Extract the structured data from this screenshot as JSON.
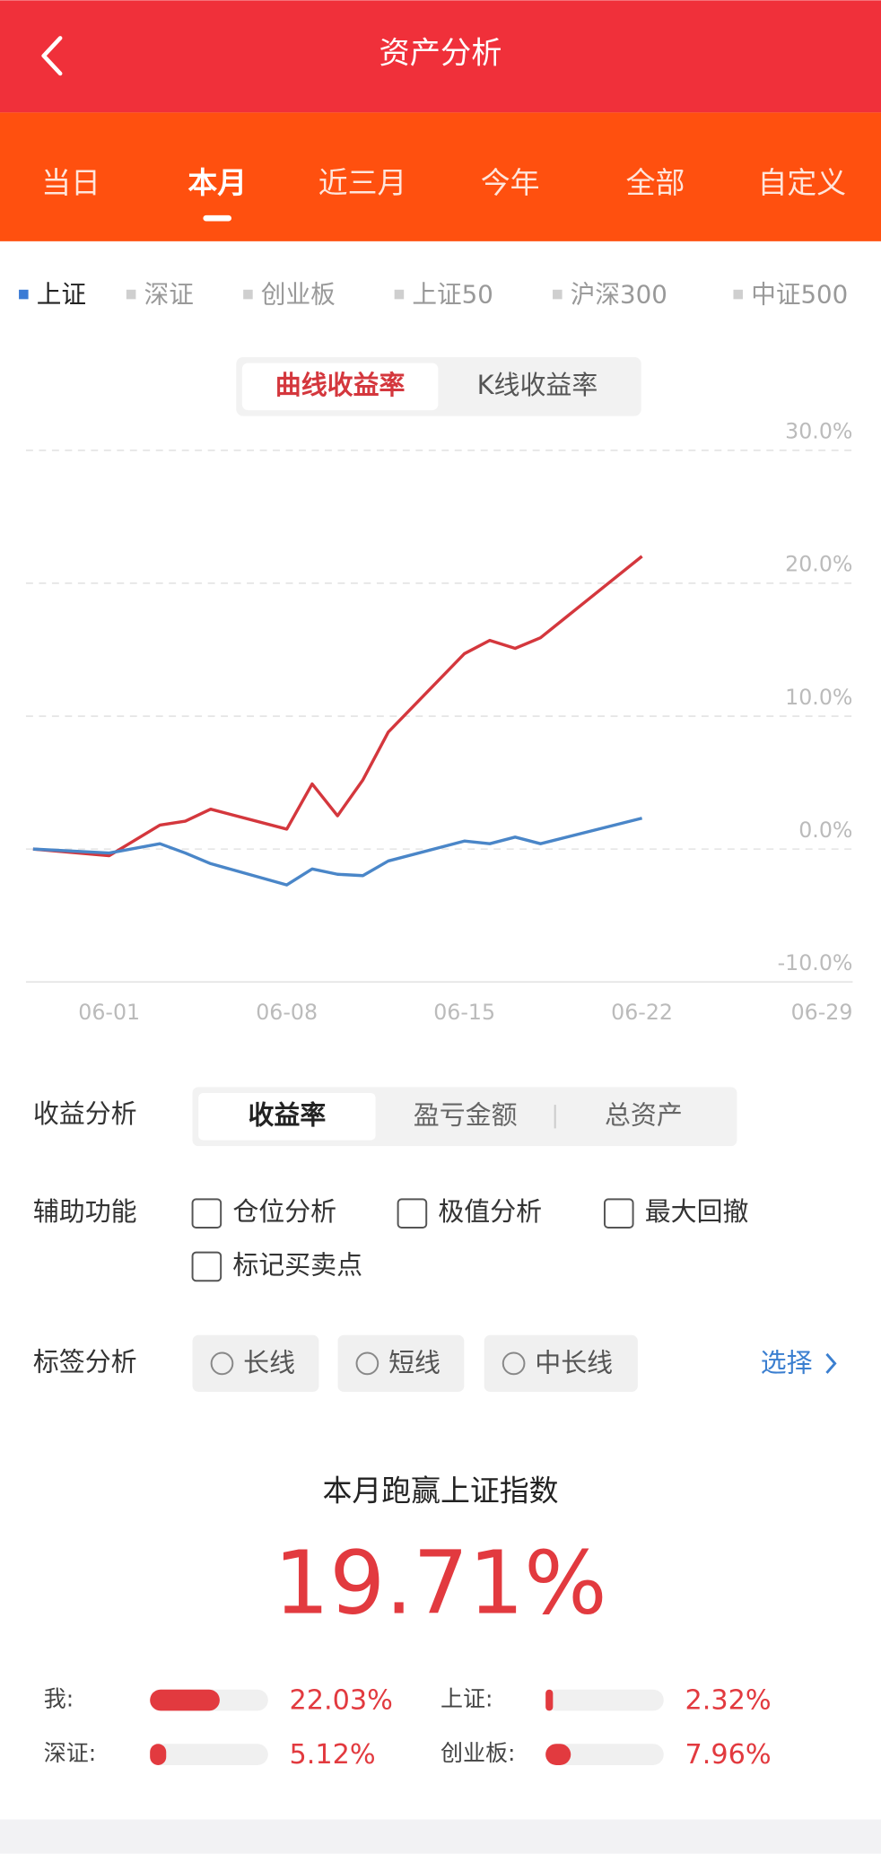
{
  "header": {
    "title": "资产分析"
  },
  "period_tabs": {
    "items": [
      "当日",
      "本月",
      "近三月",
      "今年",
      "全部",
      "自定义"
    ],
    "active": 1
  },
  "index_tabs": {
    "items": [
      "上证",
      "深证",
      "创业板",
      "上证50",
      "沪深300",
      "中证500"
    ],
    "active": 0,
    "active_color": "#3a7bd5"
  },
  "chart_mode": {
    "items": [
      "曲线收益率",
      "K线收益率"
    ],
    "active": 0
  },
  "chart_data": {
    "type": "line",
    "x": [
      "05-29",
      "06-01",
      "06-03",
      "06-04",
      "06-05",
      "06-08",
      "06-09",
      "06-10",
      "06-11",
      "06-12",
      "06-15",
      "06-16",
      "06-17",
      "06-18",
      "06-22"
    ],
    "series": [
      {
        "color": "#d4373d",
        "values": [
          0,
          -0.5,
          1.8,
          2.1,
          3.0,
          1.5,
          4.9,
          2.5,
          5.2,
          8.8,
          14.7,
          15.7,
          15.1,
          15.9,
          22.03
        ]
      },
      {
        "color": "#4a86c8",
        "values": [
          0,
          -0.3,
          0.4,
          -0.3,
          -1.1,
          -2.7,
          -1.5,
          -1.9,
          -2.0,
          -0.9,
          0.6,
          0.4,
          0.9,
          0.4,
          2.32
        ]
      }
    ],
    "xlim": [
      "05-29",
      "06-29"
    ],
    "xticks": [
      "06-01",
      "06-08",
      "06-15",
      "06-22",
      "06-29"
    ],
    "ylim": [
      -10,
      30
    ],
    "yticks": [
      {
        "value": -10,
        "label": "-10.0%"
      },
      {
        "value": 0,
        "label": "0.0%"
      },
      {
        "value": 10,
        "label": "10.0%"
      },
      {
        "value": 20,
        "label": "20.0%"
      },
      {
        "value": 30,
        "label": "30.0%"
      }
    ],
    "grid": true
  },
  "profit_analysis": {
    "label": "收益分析",
    "options": [
      "收益率",
      "盈亏金额",
      "总资产"
    ],
    "active": 0
  },
  "aux_functions": {
    "label": "辅助功能",
    "options": [
      "仓位分析",
      "极值分析",
      "最大回撤",
      "标记买卖点"
    ]
  },
  "tag_analysis": {
    "label": "标签分析",
    "options": [
      "长线",
      "短线",
      "中长线"
    ],
    "action": "选择"
  },
  "summary": {
    "title": "本月跑赢上证指数",
    "value": "19.71%",
    "rows": [
      {
        "label": "我:",
        "value": 22.03,
        "value_label": "22.03%"
      },
      {
        "label": "上证:",
        "value": 2.32,
        "value_label": "2.32%"
      },
      {
        "label": "深证:",
        "value": 5.12,
        "value_label": "5.12%"
      },
      {
        "label": "创业板:",
        "value": 7.96,
        "value_label": "7.96%"
      }
    ]
  }
}
